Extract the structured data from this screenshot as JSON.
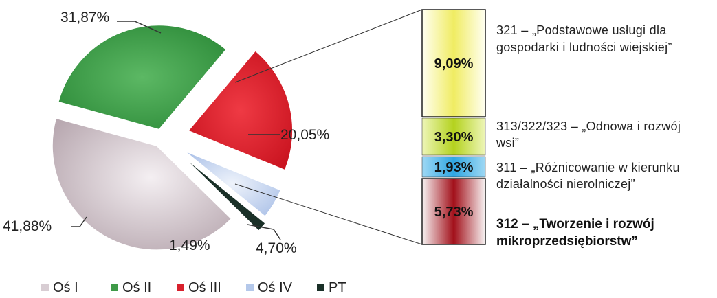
{
  "chart_data": [
    {
      "type": "pie",
      "categories": [
        "Oś I",
        "Oś II",
        "Oś III",
        "Oś IV",
        "PT"
      ],
      "values": [
        41.88,
        31.87,
        20.05,
        4.7,
        1.49
      ],
      "labels": [
        "41,88%",
        "31,87%",
        "20,05%",
        "4,70%",
        "1,49%"
      ],
      "colors": [
        "#d8cdd3",
        "#3e9a48",
        "#d8202c",
        "#b4c8ea",
        "#1a3028"
      ],
      "legend": "bottom",
      "exploded": true
    },
    {
      "type": "bar",
      "stacked": true,
      "breakdown_of": "Oś III",
      "categories": [
        "321",
        "313/322/323",
        "311",
        "312"
      ],
      "values": [
        9.09,
        3.3,
        1.93,
        5.73
      ],
      "labels": [
        "9,09%",
        "3,30%",
        "1,93%",
        "5,73%"
      ],
      "colors": [
        "#f0ec6a",
        "#b9d42a",
        "#4ab6e8",
        "#a8141c"
      ],
      "descriptions": [
        [
          "321 – „Podstawowe usługi dla",
          "gospodarki i ludności wiejskiej”"
        ],
        [
          "313/322/323 – „Odnowa i rozwój",
          "wsi”"
        ],
        [
          "311 – „Różnicowanie w kierunku",
          "działalności nierolniczej”"
        ],
        [
          "312 – „Tworzenie i rozwój",
          "mikroprzedsiębiorstw”"
        ]
      ]
    }
  ]
}
